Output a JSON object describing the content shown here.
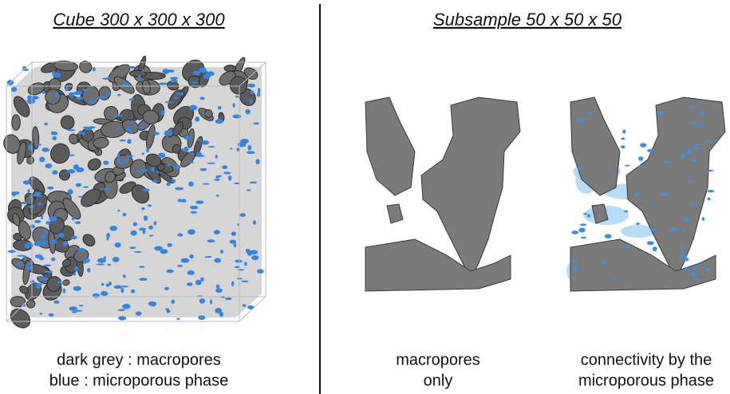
{
  "left": {
    "title": "Cube 300 x 300 x 300",
    "caption": [
      "dark grey : macropores",
      "blue : microporous phase"
    ]
  },
  "right": {
    "title": "Subsample 50 x 50 x 50",
    "panels": [
      {
        "caption": [
          "macropores",
          "only"
        ]
      },
      {
        "caption": [
          "connectivity by the",
          "microporous phase"
        ]
      }
    ]
  }
}
